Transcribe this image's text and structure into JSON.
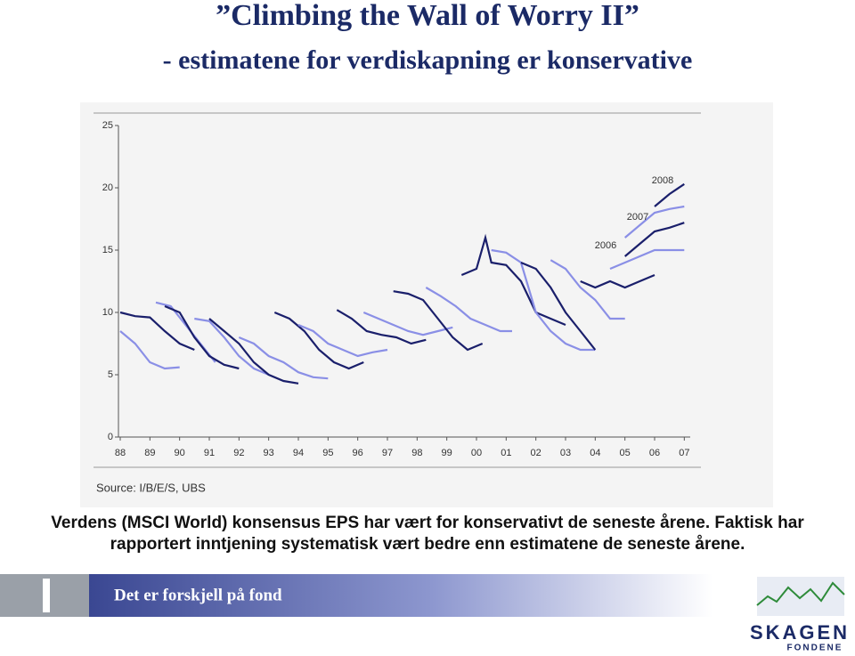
{
  "header": {
    "title": "”Climbing the Wall of Worry II”",
    "subtitle": "- estimatene for verdiskapning er konservative"
  },
  "chart_data": {
    "type": "line",
    "xlim": [
      1988,
      2007.2
    ],
    "xticks": [
      {
        "value": 1988,
        "label": "88"
      },
      {
        "value": 1989,
        "label": "89"
      },
      {
        "value": 1990,
        "label": "90"
      },
      {
        "value": 1991,
        "label": "91"
      },
      {
        "value": 1992,
        "label": "92"
      },
      {
        "value": 1993,
        "label": "93"
      },
      {
        "value": 1994,
        "label": "94"
      },
      {
        "value": 1995,
        "label": "95"
      },
      {
        "value": 1996,
        "label": "96"
      },
      {
        "value": 1997,
        "label": "97"
      },
      {
        "value": 1998,
        "label": "98"
      },
      {
        "value": 1999,
        "label": "99"
      },
      {
        "value": 2000,
        "label": "00"
      },
      {
        "value": 2001,
        "label": "01"
      },
      {
        "value": 2002,
        "label": "02"
      },
      {
        "value": 2003,
        "label": "03"
      },
      {
        "value": 2004,
        "label": "04"
      },
      {
        "value": 2005,
        "label": "05"
      },
      {
        "value": 2006,
        "label": "06"
      },
      {
        "value": 2007,
        "label": "07"
      }
    ],
    "ylim": [
      0,
      25
    ],
    "yticks": [
      0,
      5,
      10,
      15,
      20,
      25
    ],
    "annotations": [
      "2006",
      "2007",
      "2008"
    ],
    "source": "Source: I/B/E/S, UBS",
    "series": [
      {
        "color": "#8a8fe6",
        "x": [
          1988,
          1988.5,
          1989,
          1989.5,
          1990
        ],
        "values": [
          8.5,
          7.5,
          6.0,
          5.5,
          5.6
        ]
      },
      {
        "color": "#1a1f6b",
        "x": [
          1988,
          1988.5,
          1989,
          1989.5,
          1990,
          1990.5
        ],
        "values": [
          10,
          9.7,
          9.6,
          8.5,
          7.5,
          7.0
        ]
      },
      {
        "color": "#8a8fe6",
        "x": [
          1989.2,
          1989.7,
          1990.2,
          1990.7,
          1991.2
        ],
        "values": [
          10.8,
          10.5,
          9.0,
          7.5,
          6.0
        ]
      },
      {
        "color": "#1a1f6b",
        "x": [
          1989.5,
          1990,
          1990.5,
          1991,
          1991.5,
          1992
        ],
        "values": [
          10.5,
          10.0,
          8.0,
          6.5,
          5.8,
          5.5
        ]
      },
      {
        "color": "#8a8fe6",
        "x": [
          1990.5,
          1991,
          1991.5,
          1992,
          1992.5,
          1993
        ],
        "values": [
          9.5,
          9.3,
          8.0,
          6.5,
          5.5,
          5.0
        ]
      },
      {
        "color": "#1a1f6b",
        "x": [
          1991,
          1991.5,
          1992,
          1992.5,
          1993,
          1993.5,
          1994
        ],
        "values": [
          9.5,
          8.5,
          7.5,
          6.0,
          5.0,
          4.5,
          4.3
        ]
      },
      {
        "color": "#8a8fe6",
        "x": [
          1992,
          1992.5,
          1993,
          1993.5,
          1994,
          1994.5,
          1995
        ],
        "values": [
          8.0,
          7.5,
          6.5,
          6.0,
          5.2,
          4.8,
          4.7
        ]
      },
      {
        "color": "#1a1f6b",
        "x": [
          1993.2,
          1993.7,
          1994.2,
          1994.7,
          1995.2,
          1995.7,
          1996.2
        ],
        "values": [
          10.0,
          9.5,
          8.5,
          7.0,
          6.0,
          5.5,
          6.0
        ]
      },
      {
        "color": "#8a8fe6",
        "x": [
          1994,
          1994.5,
          1995,
          1995.5,
          1996,
          1996.5,
          1997
        ],
        "values": [
          9.0,
          8.5,
          7.5,
          7.0,
          6.5,
          6.8,
          7.0
        ]
      },
      {
        "color": "#1a1f6b",
        "x": [
          1995.3,
          1995.8,
          1996.3,
          1996.8,
          1997.3,
          1997.8,
          1998.3
        ],
        "values": [
          10.2,
          9.5,
          8.5,
          8.2,
          8.0,
          7.5,
          7.8
        ]
      },
      {
        "color": "#8a8fe6",
        "x": [
          1996.2,
          1996.7,
          1997.2,
          1997.7,
          1998.2,
          1998.7,
          1999.2
        ],
        "values": [
          10.0,
          9.5,
          9.0,
          8.5,
          8.2,
          8.5,
          8.8
        ]
      },
      {
        "color": "#1a1f6b",
        "x": [
          1997.2,
          1997.7,
          1998.2,
          1998.7,
          1999.2,
          1999.7,
          2000.2
        ],
        "values": [
          11.7,
          11.5,
          11.0,
          9.5,
          8.0,
          7.0,
          7.5
        ]
      },
      {
        "color": "#8a8fe6",
        "x": [
          1998.3,
          1998.8,
          1999.3,
          1999.8,
          2000.3,
          2000.8,
          2001.2
        ],
        "values": [
          12.0,
          11.3,
          10.5,
          9.5,
          9.0,
          8.5,
          8.5
        ]
      },
      {
        "color": "#1a1f6b",
        "x": [
          1999.5,
          2000,
          2000.3,
          2000.5,
          2001,
          2001.5,
          2002,
          2002.5,
          2003
        ],
        "values": [
          13.0,
          13.5,
          16.0,
          14.0,
          13.8,
          12.5,
          10.0,
          9.5,
          9.0
        ]
      },
      {
        "color": "#8a8fe6",
        "x": [
          2000.5,
          2001,
          2001.5,
          2002,
          2002.5,
          2003,
          2003.5,
          2004
        ],
        "values": [
          15.0,
          14.8,
          14.0,
          10.0,
          8.5,
          7.5,
          7.0,
          7.0
        ]
      },
      {
        "color": "#1a1f6b",
        "x": [
          2001.5,
          2002,
          2002.5,
          2003,
          2003.5,
          2004
        ],
        "values": [
          14.0,
          13.5,
          12.0,
          10.0,
          8.5,
          7.0
        ]
      },
      {
        "color": "#8a8fe6",
        "x": [
          2002.5,
          2003,
          2003.5,
          2004,
          2004.5,
          2005
        ],
        "values": [
          14.2,
          13.5,
          12.0,
          11.0,
          9.5,
          9.5
        ]
      },
      {
        "color": "#1a1f6b",
        "x": [
          2003.5,
          2004,
          2004.5,
          2005,
          2005.5,
          2006
        ],
        "values": [
          12.5,
          12.0,
          12.5,
          12.0,
          12.5,
          13.0
        ]
      },
      {
        "color": "#8a8fe6",
        "x": [
          2004.5,
          2005,
          2005.5,
          2006,
          2006.5,
          2007
        ],
        "values": [
          13.5,
          14.0,
          14.5,
          15.0,
          15.0,
          15.0
        ]
      },
      {
        "color": "#1a1f6b",
        "x": [
          2005,
          2005.5,
          2006,
          2006.5,
          2007
        ],
        "values": [
          14.5,
          15.5,
          16.5,
          16.8,
          17.2
        ]
      },
      {
        "color": "#8a8fe6",
        "x": [
          2005,
          2005.5,
          2006,
          2006.5,
          2007
        ],
        "values": [
          16.0,
          17.0,
          18.0,
          18.3,
          18.5
        ]
      },
      {
        "color": "#1a1f6b",
        "x": [
          2006,
          2006.5,
          2007
        ],
        "values": [
          18.5,
          19.5,
          20.3
        ]
      }
    ]
  },
  "caption": [
    "Verdens (MSCI World) konsensus EPS har vært for konservativt de seneste årene. Faktisk har",
    "rapportert inntjening systematisk vært bedre enn estimatene de seneste årene."
  ],
  "footer": {
    "slogan": "Det er forskjell på fond",
    "logo": "SKAGEN",
    "logo_sub": "FONDENE"
  }
}
